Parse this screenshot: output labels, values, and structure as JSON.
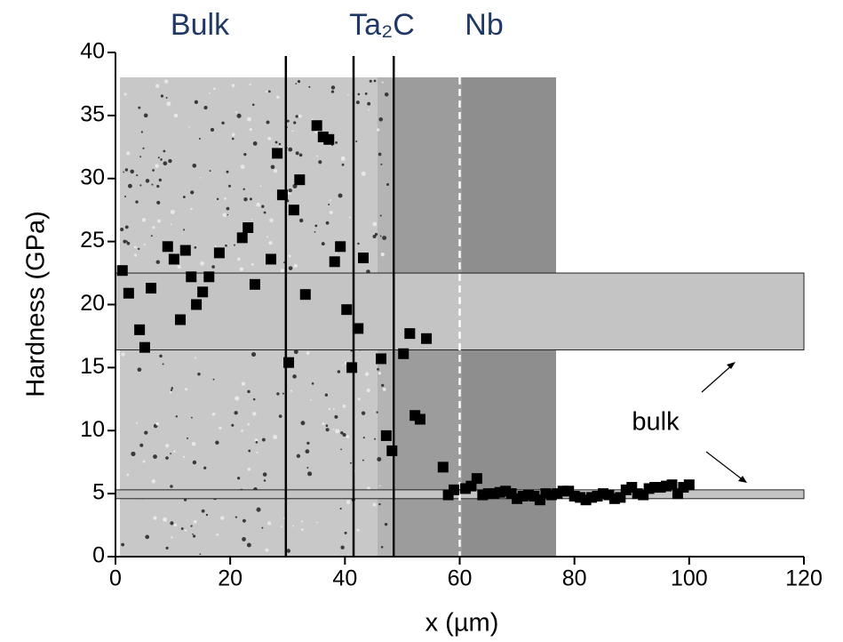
{
  "chart_data": {
    "type": "scatter",
    "x_label": "x (µm)",
    "y_label": "Hardness (GPa)",
    "region_labels": [
      "Bulk",
      "Ta₂C",
      "Nb"
    ],
    "annotation": "bulk",
    "x": [
      1.2,
      2.3,
      4.2,
      5.1,
      6.2,
      9.1,
      10.2,
      11.3,
      12.2,
      13.2,
      14.1,
      15.2,
      16.3,
      18.1,
      22.1,
      23.1,
      24.3,
      27.1,
      28.2,
      29.1,
      30.2,
      31.1,
      32.1,
      33.1,
      35.1,
      36.2,
      37.2,
      38.2,
      39.2,
      40.3,
      41.2,
      42.3,
      43.2,
      46.3,
      47.2,
      48.2,
      50.2,
      51.3,
      52.2,
      53.1,
      54.2,
      57.1,
      58,
      59,
      61,
      62,
      63,
      64,
      65,
      66,
      67,
      68,
      69,
      70,
      71,
      72,
      73,
      74,
      75,
      76,
      77,
      78,
      79,
      80,
      81,
      82,
      83,
      84,
      85,
      86,
      87,
      88,
      89,
      90,
      91,
      92,
      93,
      94,
      95,
      96,
      97,
      98,
      99,
      100
    ],
    "values": [
      22.7,
      20.9,
      18.0,
      16.6,
      21.3,
      24.6,
      23.6,
      18.8,
      24.3,
      22.2,
      20.0,
      21.0,
      22.2,
      24.1,
      25.3,
      26.1,
      21.6,
      23.6,
      32.0,
      28.7,
      15.4,
      27.5,
      29.9,
      20.8,
      34.2,
      33.3,
      33.1,
      23.4,
      24.6,
      19.6,
      15.0,
      18.1,
      23.7,
      15.7,
      9.6,
      8.4,
      16.1,
      17.7,
      11.2,
      10.9,
      17.3,
      7.1,
      4.9,
      5.3,
      5.4,
      5.6,
      6.2,
      4.9,
      5.0,
      5.0,
      5.1,
      5.2,
      5.0,
      4.6,
      4.8,
      4.9,
      4.8,
      4.5,
      5.0,
      4.9,
      5.0,
      5.2,
      5.2,
      4.8,
      4.7,
      4.5,
      4.7,
      4.8,
      5.0,
      4.9,
      4.6,
      4.7,
      5.3,
      5.5,
      5.0,
      4.9,
      5.4,
      5.5,
      5.5,
      5.6,
      5.7,
      5.0,
      5.5,
      5.7
    ],
    "color": "#000000",
    "bands": [
      [
        16.4,
        22.5
      ],
      [
        4.6,
        5.3
      ]
    ],
    "band_color": "#c4c4c4",
    "vlines": [
      29.7,
      41.5,
      48.5
    ],
    "dashed_vline": 60,
    "xlim": [
      0,
      120
    ],
    "ylim": [
      0,
      40
    ],
    "xticks": [
      0,
      20,
      40,
      60,
      80,
      100,
      120
    ],
    "yticks": [
      0,
      5,
      10,
      15,
      20,
      25,
      30,
      35,
      40
    ]
  }
}
